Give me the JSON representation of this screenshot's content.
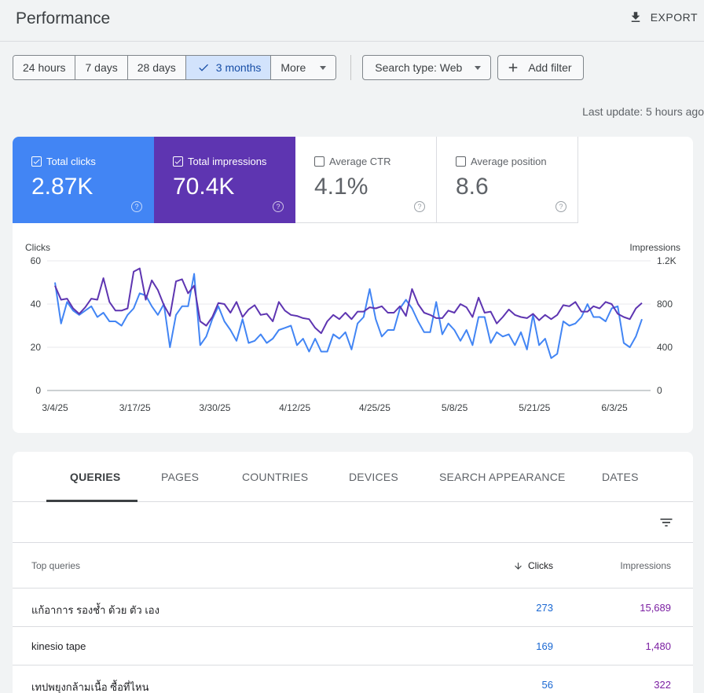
{
  "header": {
    "title": "Performance",
    "export_label": "EXPORT"
  },
  "filters": {
    "ranges": [
      "24 hours",
      "7 days",
      "28 days",
      "3 months",
      "More"
    ],
    "active_range": "3 months",
    "search_type": "Search type: Web",
    "add_filter": "Add filter"
  },
  "last_update": "Last update: 5 hours ago",
  "metrics": [
    {
      "label": "Total clicks",
      "value": "2.87K",
      "checked": true,
      "color": "#4285f4"
    },
    {
      "label": "Total impressions",
      "value": "70.4K",
      "checked": true,
      "color": "#5e35b1"
    },
    {
      "label": "Average CTR",
      "value": "4.1%",
      "checked": false
    },
    {
      "label": "Average position",
      "value": "8.6",
      "checked": false
    }
  ],
  "chart_data": {
    "type": "line",
    "left_axis_label": "Clicks",
    "right_axis_label": "Impressions",
    "y_left_ticks": [
      "0",
      "20",
      "40",
      "60"
    ],
    "y_right_ticks": [
      "0",
      "400",
      "800",
      "1.2K"
    ],
    "ylim_left": [
      0,
      60
    ],
    "ylim_right": [
      0,
      1200
    ],
    "x_tick_labels": [
      "3/4/25",
      "3/17/25",
      "3/30/25",
      "4/12/25",
      "4/25/25",
      "5/8/25",
      "5/21/25",
      "6/3/25"
    ],
    "grid": true,
    "series": [
      {
        "name": "Clicks",
        "color": "#4285f4",
        "values": [
          50,
          31,
          41,
          37,
          35,
          37,
          39,
          34,
          36,
          32,
          32,
          30,
          35,
          38,
          45,
          44,
          39,
          35,
          40,
          20,
          35,
          39,
          39,
          54,
          21,
          25,
          33,
          39,
          32,
          28,
          23,
          33,
          22,
          23,
          26,
          22,
          24,
          28,
          29,
          30,
          21,
          24,
          18,
          24,
          18,
          18,
          26,
          24,
          27,
          19,
          31,
          34,
          47,
          33,
          25,
          28,
          28,
          38,
          42,
          38,
          32,
          27,
          27,
          41,
          26,
          31,
          28,
          23,
          28,
          21,
          34,
          34,
          22,
          27,
          25,
          26,
          21,
          27,
          19,
          35,
          21,
          24,
          15,
          17,
          32,
          30,
          31,
          34,
          40,
          34,
          34,
          32,
          38,
          39,
          22,
          20,
          25,
          33
        ]
      },
      {
        "name": "Impressions",
        "color": "#5e35b1",
        "values": [
          970,
          840,
          850,
          760,
          710,
          770,
          850,
          840,
          1040,
          820,
          740,
          740,
          760,
          1100,
          1130,
          840,
          1020,
          930,
          790,
          690,
          1010,
          1030,
          900,
          970,
          640,
          600,
          680,
          810,
          800,
          720,
          820,
          680,
          750,
          790,
          700,
          710,
          640,
          820,
          740,
          700,
          690,
          670,
          660,
          580,
          530,
          640,
          700,
          660,
          720,
          660,
          730,
          730,
          770,
          760,
          780,
          720,
          720,
          780,
          690,
          940,
          800,
          720,
          700,
          670,
          670,
          740,
          720,
          800,
          770,
          680,
          860,
          720,
          730,
          620,
          680,
          750,
          700,
          680,
          670,
          710,
          650,
          700,
          660,
          700,
          790,
          780,
          820,
          730,
          730,
          780,
          760,
          820,
          800,
          710,
          680,
          660,
          760,
          810
        ]
      }
    ]
  },
  "tabs": [
    "QUERIES",
    "PAGES",
    "COUNTRIES",
    "DEVICES",
    "SEARCH APPEARANCE",
    "DATES"
  ],
  "table": {
    "headers": {
      "query": "Top queries",
      "clicks": "Clicks",
      "impressions": "Impressions"
    },
    "rows": [
      {
        "query": "แก้อาการ รองช้ำ ด้วย ตัว เอง",
        "clicks": "273",
        "impressions": "15,689"
      },
      {
        "query": "kinesio tape",
        "clicks": "169",
        "impressions": "1,480"
      },
      {
        "query": "เทปพยุงกล้ามเนื้อ ซื้อที่ไหน",
        "clicks": "56",
        "impressions": "322"
      }
    ]
  }
}
